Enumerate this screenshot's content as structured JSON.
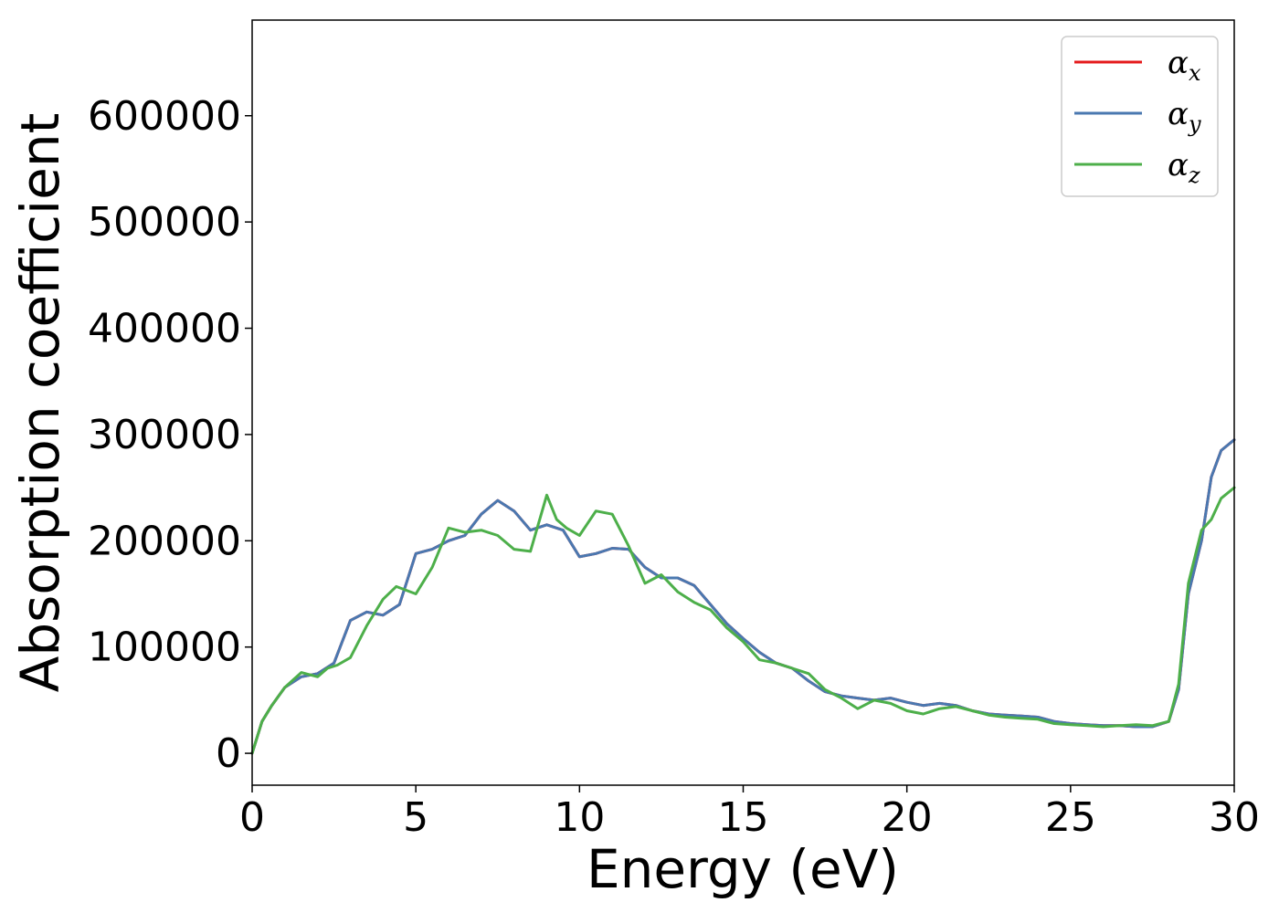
{
  "chart_data": {
    "type": "line",
    "title": "",
    "xlabel": "Energy (eV)",
    "ylabel": "Absorption coefficient",
    "xlim": [
      0,
      30
    ],
    "ylim": [
      -30000,
      690000
    ],
    "xticks": [
      0,
      5,
      10,
      15,
      20,
      25,
      30
    ],
    "xtick_labels": [
      "0",
      "5",
      "10",
      "15",
      "20",
      "25",
      "30"
    ],
    "yticks": [
      0,
      100000,
      200000,
      300000,
      400000,
      500000,
      600000
    ],
    "ytick_labels": [
      "0",
      "100000",
      "200000",
      "300000",
      "400000",
      "500000",
      "600000"
    ],
    "grid": false,
    "legend_position": "top-right",
    "series": [
      {
        "name": "α",
        "sub": "x",
        "color": "#e41a1c",
        "x": [
          0,
          0.3,
          0.6,
          1.0,
          1.5,
          2.0,
          2.5,
          3.0,
          3.5,
          4.0,
          4.5,
          5.0,
          5.5,
          6.0,
          6.5,
          7.0,
          7.5,
          8.0,
          8.5,
          9.0,
          9.5,
          10.0,
          10.5,
          11.0,
          11.5,
          12.0,
          12.5,
          13.0,
          13.5,
          14.0,
          14.5,
          15.0,
          15.5,
          16.0,
          16.5,
          17.0,
          17.5,
          18.0,
          18.5,
          19.0,
          19.5,
          20.0,
          20.5,
          21.0,
          21.5,
          22.0,
          22.5,
          23.0,
          23.5,
          24.0,
          24.5,
          25.0,
          25.5,
          26.0,
          26.5,
          27.0,
          27.5,
          28.0,
          28.3,
          28.6,
          29.0,
          29.3,
          29.6,
          30.0
        ],
        "y": [
          0,
          30000,
          45000,
          62000,
          72000,
          75000,
          85000,
          125000,
          133000,
          130000,
          140000,
          188000,
          192000,
          200000,
          205000,
          225000,
          238000,
          228000,
          210000,
          215000,
          210000,
          185000,
          188000,
          193000,
          192000,
          175000,
          165000,
          165000,
          158000,
          140000,
          122000,
          108000,
          95000,
          85000,
          80000,
          68000,
          58000,
          54000,
          52000,
          50000,
          52000,
          48000,
          45000,
          47000,
          45000,
          40000,
          37000,
          36000,
          35000,
          34000,
          30000,
          28000,
          27000,
          26000,
          26000,
          25000,
          25000,
          30000,
          60000,
          150000,
          200000,
          260000,
          285000,
          295000
        ]
      },
      {
        "name": "α",
        "sub": "y",
        "color": "#4a78b0",
        "x": [
          0,
          0.3,
          0.6,
          1.0,
          1.5,
          2.0,
          2.5,
          3.0,
          3.5,
          4.0,
          4.5,
          5.0,
          5.5,
          6.0,
          6.5,
          7.0,
          7.5,
          8.0,
          8.5,
          9.0,
          9.5,
          10.0,
          10.5,
          11.0,
          11.5,
          12.0,
          12.5,
          13.0,
          13.5,
          14.0,
          14.5,
          15.0,
          15.5,
          16.0,
          16.5,
          17.0,
          17.5,
          18.0,
          18.5,
          19.0,
          19.5,
          20.0,
          20.5,
          21.0,
          21.5,
          22.0,
          22.5,
          23.0,
          23.5,
          24.0,
          24.5,
          25.0,
          25.5,
          26.0,
          26.5,
          27.0,
          27.5,
          28.0,
          28.3,
          28.6,
          29.0,
          29.3,
          29.6,
          30.0
        ],
        "y": [
          0,
          30000,
          45000,
          62000,
          72000,
          75000,
          85000,
          125000,
          133000,
          130000,
          140000,
          188000,
          192000,
          200000,
          205000,
          225000,
          238000,
          228000,
          210000,
          215000,
          210000,
          185000,
          188000,
          193000,
          192000,
          175000,
          165000,
          165000,
          158000,
          140000,
          122000,
          108000,
          95000,
          85000,
          80000,
          68000,
          58000,
          54000,
          52000,
          50000,
          52000,
          48000,
          45000,
          47000,
          45000,
          40000,
          37000,
          36000,
          35000,
          34000,
          30000,
          28000,
          27000,
          26000,
          26000,
          25000,
          25000,
          30000,
          60000,
          150000,
          200000,
          260000,
          285000,
          295000
        ]
      },
      {
        "name": "α",
        "sub": "z",
        "color": "#4daf4a",
        "x": [
          0,
          0.3,
          0.6,
          1.0,
          1.5,
          2.0,
          2.3,
          2.6,
          3.0,
          3.5,
          4.0,
          4.4,
          5.0,
          5.5,
          6.0,
          6.5,
          7.0,
          7.5,
          8.0,
          8.5,
          9.0,
          9.3,
          9.6,
          10.0,
          10.5,
          11.0,
          11.5,
          12.0,
          12.5,
          13.0,
          13.5,
          14.0,
          14.5,
          15.0,
          15.5,
          16.0,
          16.5,
          17.0,
          17.5,
          18.0,
          18.5,
          19.0,
          19.5,
          20.0,
          20.5,
          21.0,
          21.5,
          22.0,
          22.5,
          23.0,
          23.5,
          24.0,
          24.5,
          25.0,
          25.5,
          26.0,
          26.5,
          27.0,
          27.5,
          28.0,
          28.3,
          28.6,
          29.0,
          29.3,
          29.6,
          30.0
        ],
        "y": [
          0,
          30000,
          45000,
          62000,
          76000,
          72000,
          80000,
          83000,
          90000,
          120000,
          145000,
          157000,
          150000,
          175000,
          212000,
          208000,
          210000,
          205000,
          192000,
          190000,
          243000,
          220000,
          212000,
          205000,
          228000,
          225000,
          195000,
          160000,
          168000,
          152000,
          142000,
          135000,
          118000,
          105000,
          88000,
          85000,
          80000,
          75000,
          60000,
          52000,
          42000,
          50000,
          47000,
          40000,
          37000,
          42000,
          44000,
          40000,
          36000,
          34000,
          33000,
          32000,
          28000,
          27000,
          26000,
          25000,
          26000,
          27000,
          26000,
          30000,
          65000,
          160000,
          210000,
          220000,
          240000,
          250000
        ]
      }
    ]
  }
}
